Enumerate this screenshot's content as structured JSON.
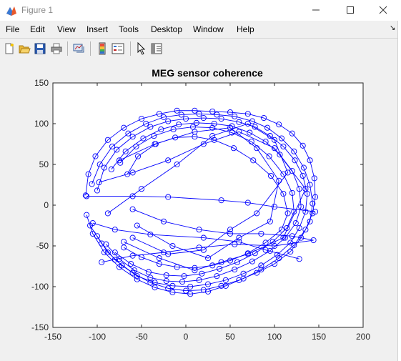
{
  "window": {
    "title": "Figure 1",
    "icon": "matlab-icon",
    "controls": [
      "minimize-icon",
      "maximize-icon",
      "close-icon"
    ]
  },
  "menu": [
    "File",
    "Edit",
    "View",
    "Insert",
    "Tools",
    "Desktop",
    "Window",
    "Help"
  ],
  "toolbar": {
    "buttons": [
      "new-figure-icon",
      "open-file-icon",
      "save-icon",
      "print-icon",
      "link-plot-icon",
      "insert-colorbar-icon",
      "insert-legend-icon",
      "edit-plot-cursor-icon",
      "property-inspector-icon"
    ]
  },
  "chart_data": {
    "type": "line",
    "title": "MEG sensor coherence",
    "xlabel": "",
    "ylabel": "",
    "xlim": [
      -150,
      200
    ],
    "ylim": [
      -150,
      150
    ],
    "xticks": [
      -150,
      -100,
      -50,
      0,
      50,
      100,
      150,
      200
    ],
    "yticks": [
      -150,
      -100,
      -50,
      0,
      50,
      100,
      150
    ],
    "marker": "o",
    "color": "#0000ff",
    "grid": false,
    "legend": "none",
    "series": [
      {
        "x": [
          -112,
          -105,
          -92,
          -75,
          -55,
          -35,
          -15,
          5,
          25,
          45,
          65,
          85,
          105,
          122,
          135,
          143,
          146,
          145,
          140,
          132,
          120,
          105,
          88,
          70,
          50,
          30,
          10,
          -10,
          -30,
          -50,
          -70,
          -88,
          -102,
          -110,
          -113
        ],
        "y": [
          -12,
          -35,
          -58,
          -76,
          -91,
          -101,
          -107,
          -109,
          -106,
          -99,
          -90,
          -79,
          -65,
          -49,
          -30,
          -10,
          10,
          33,
          55,
          73,
          88,
          99,
          107,
          112,
          114,
          115,
          116,
          116,
          112,
          106,
          95,
          80,
          60,
          38,
          12
        ]
      },
      {
        "x": [
          -108,
          -95,
          -80,
          -60,
          -40,
          -20,
          0,
          20,
          40,
          60,
          80,
          100,
          118,
          130,
          140,
          143,
          140,
          133,
          122,
          108,
          92,
          75,
          55,
          35,
          15,
          -5,
          -25,
          -45,
          -65,
          -83,
          -97,
          -106
        ],
        "y": [
          -25,
          -47,
          -67,
          -83,
          -95,
          -102,
          -105,
          -104,
          -99,
          -92,
          -83,
          -72,
          -57,
          -40,
          -20,
          2,
          25,
          46,
          66,
          82,
          95,
          103,
          109,
          111,
          112,
          111,
          108,
          100,
          88,
          72,
          50,
          26
        ]
      },
      {
        "x": [
          -100,
          -88,
          -72,
          -55,
          -35,
          -15,
          5,
          25,
          45,
          65,
          85,
          103,
          118,
          128,
          135,
          137,
          132,
          123,
          110,
          95,
          78,
          60,
          40,
          20,
          0,
          -20,
          -40,
          -60,
          -78,
          -92,
          -100
        ],
        "y": [
          -38,
          -58,
          -74,
          -87,
          -95,
          -99,
          -100,
          -97,
          -92,
          -84,
          -74,
          -61,
          -46,
          -28,
          -8,
          14,
          36,
          55,
          72,
          85,
          96,
          102,
          106,
          107,
          106,
          103,
          96,
          84,
          68,
          46,
          18
        ]
      },
      {
        "x": [
          -90,
          -75,
          -58,
          -40,
          -22,
          -4,
          15,
          35,
          55,
          75,
          95,
          112,
          124,
          130,
          128,
          120,
          106,
          90,
          72,
          52,
          32,
          12,
          -8,
          -28,
          -48,
          -68,
          -84
        ],
        "y": [
          -48,
          -66,
          -80,
          -89,
          -93,
          -94,
          -92,
          -87,
          -79,
          -69,
          -56,
          -40,
          -22,
          -2,
          20,
          42,
          62,
          78,
          89,
          97,
          100,
          101,
          99,
          93,
          82,
          66,
          44
        ]
      },
      {
        "x": [
          -80,
          -62,
          -42,
          -22,
          -2,
          18,
          38,
          58,
          78,
          98,
          114,
          122,
          120,
          110,
          94,
          74,
          52,
          30,
          8,
          -14,
          -36,
          -56,
          -74
        ],
        "y": [
          -58,
          -72,
          -82,
          -86,
          -87,
          -84,
          -78,
          -70,
          -59,
          -45,
          -28,
          -8,
          15,
          38,
          60,
          78,
          89,
          95,
          96,
          93,
          85,
          72,
          52
        ]
      },
      {
        "x": [
          -70,
          -50,
          -30,
          -10,
          10,
          30,
          50,
          70,
          90,
          108,
          115,
          110,
          96,
          76,
          54,
          32,
          10,
          -12,
          -34,
          -54,
          -66
        ],
        "y": [
          -52,
          -64,
          -72,
          -76,
          -77,
          -74,
          -68,
          -59,
          -46,
          -30,
          -10,
          14,
          36,
          55,
          70,
          80,
          84,
          83,
          75,
          60,
          38
        ]
      },
      {
        "x": [
          -112,
          -60,
          -20,
          40,
          70,
          100,
          146
        ],
        "y": [
          11,
          11,
          10,
          6,
          3,
          -2,
          -8
        ]
      },
      {
        "x": [
          -105,
          -80,
          -40,
          20,
          60,
          90,
          128
        ],
        "y": [
          -22,
          -30,
          -36,
          -40,
          -45,
          -55,
          -66
        ]
      },
      {
        "x": [
          -98,
          -60,
          -20,
          20,
          60,
          100,
          135,
          110,
          70,
          40,
          10,
          -30,
          -70
        ],
        "y": [
          28,
          40,
          55,
          75,
          90,
          70,
          20,
          -40,
          -60,
          -70,
          -80,
          -65,
          -45
        ]
      },
      {
        "x": [
          -88,
          -50,
          -10,
          30,
          70,
          100,
          115,
          80,
          50,
          20,
          -20,
          -60
        ],
        "y": [
          -10,
          20,
          50,
          85,
          100,
          80,
          40,
          -10,
          -30,
          -55,
          -60,
          -40
        ]
      },
      {
        "x": [
          -75,
          -35,
          10,
          50,
          80,
          105,
          95,
          60,
          25,
          -15,
          -55
        ],
        "y": [
          55,
          75,
          90,
          95,
          70,
          30,
          -20,
          -40,
          -65,
          -50,
          -25
        ]
      },
      {
        "x": [
          -60,
          -25,
          15,
          50,
          85,
          120,
          144,
          100,
          55,
          15,
          -25,
          -60,
          -95
        ],
        "y": [
          -5,
          -20,
          -30,
          -35,
          -35,
          -38,
          -43,
          -50,
          -48,
          -52,
          -58,
          -62,
          -70
        ]
      }
    ]
  }
}
